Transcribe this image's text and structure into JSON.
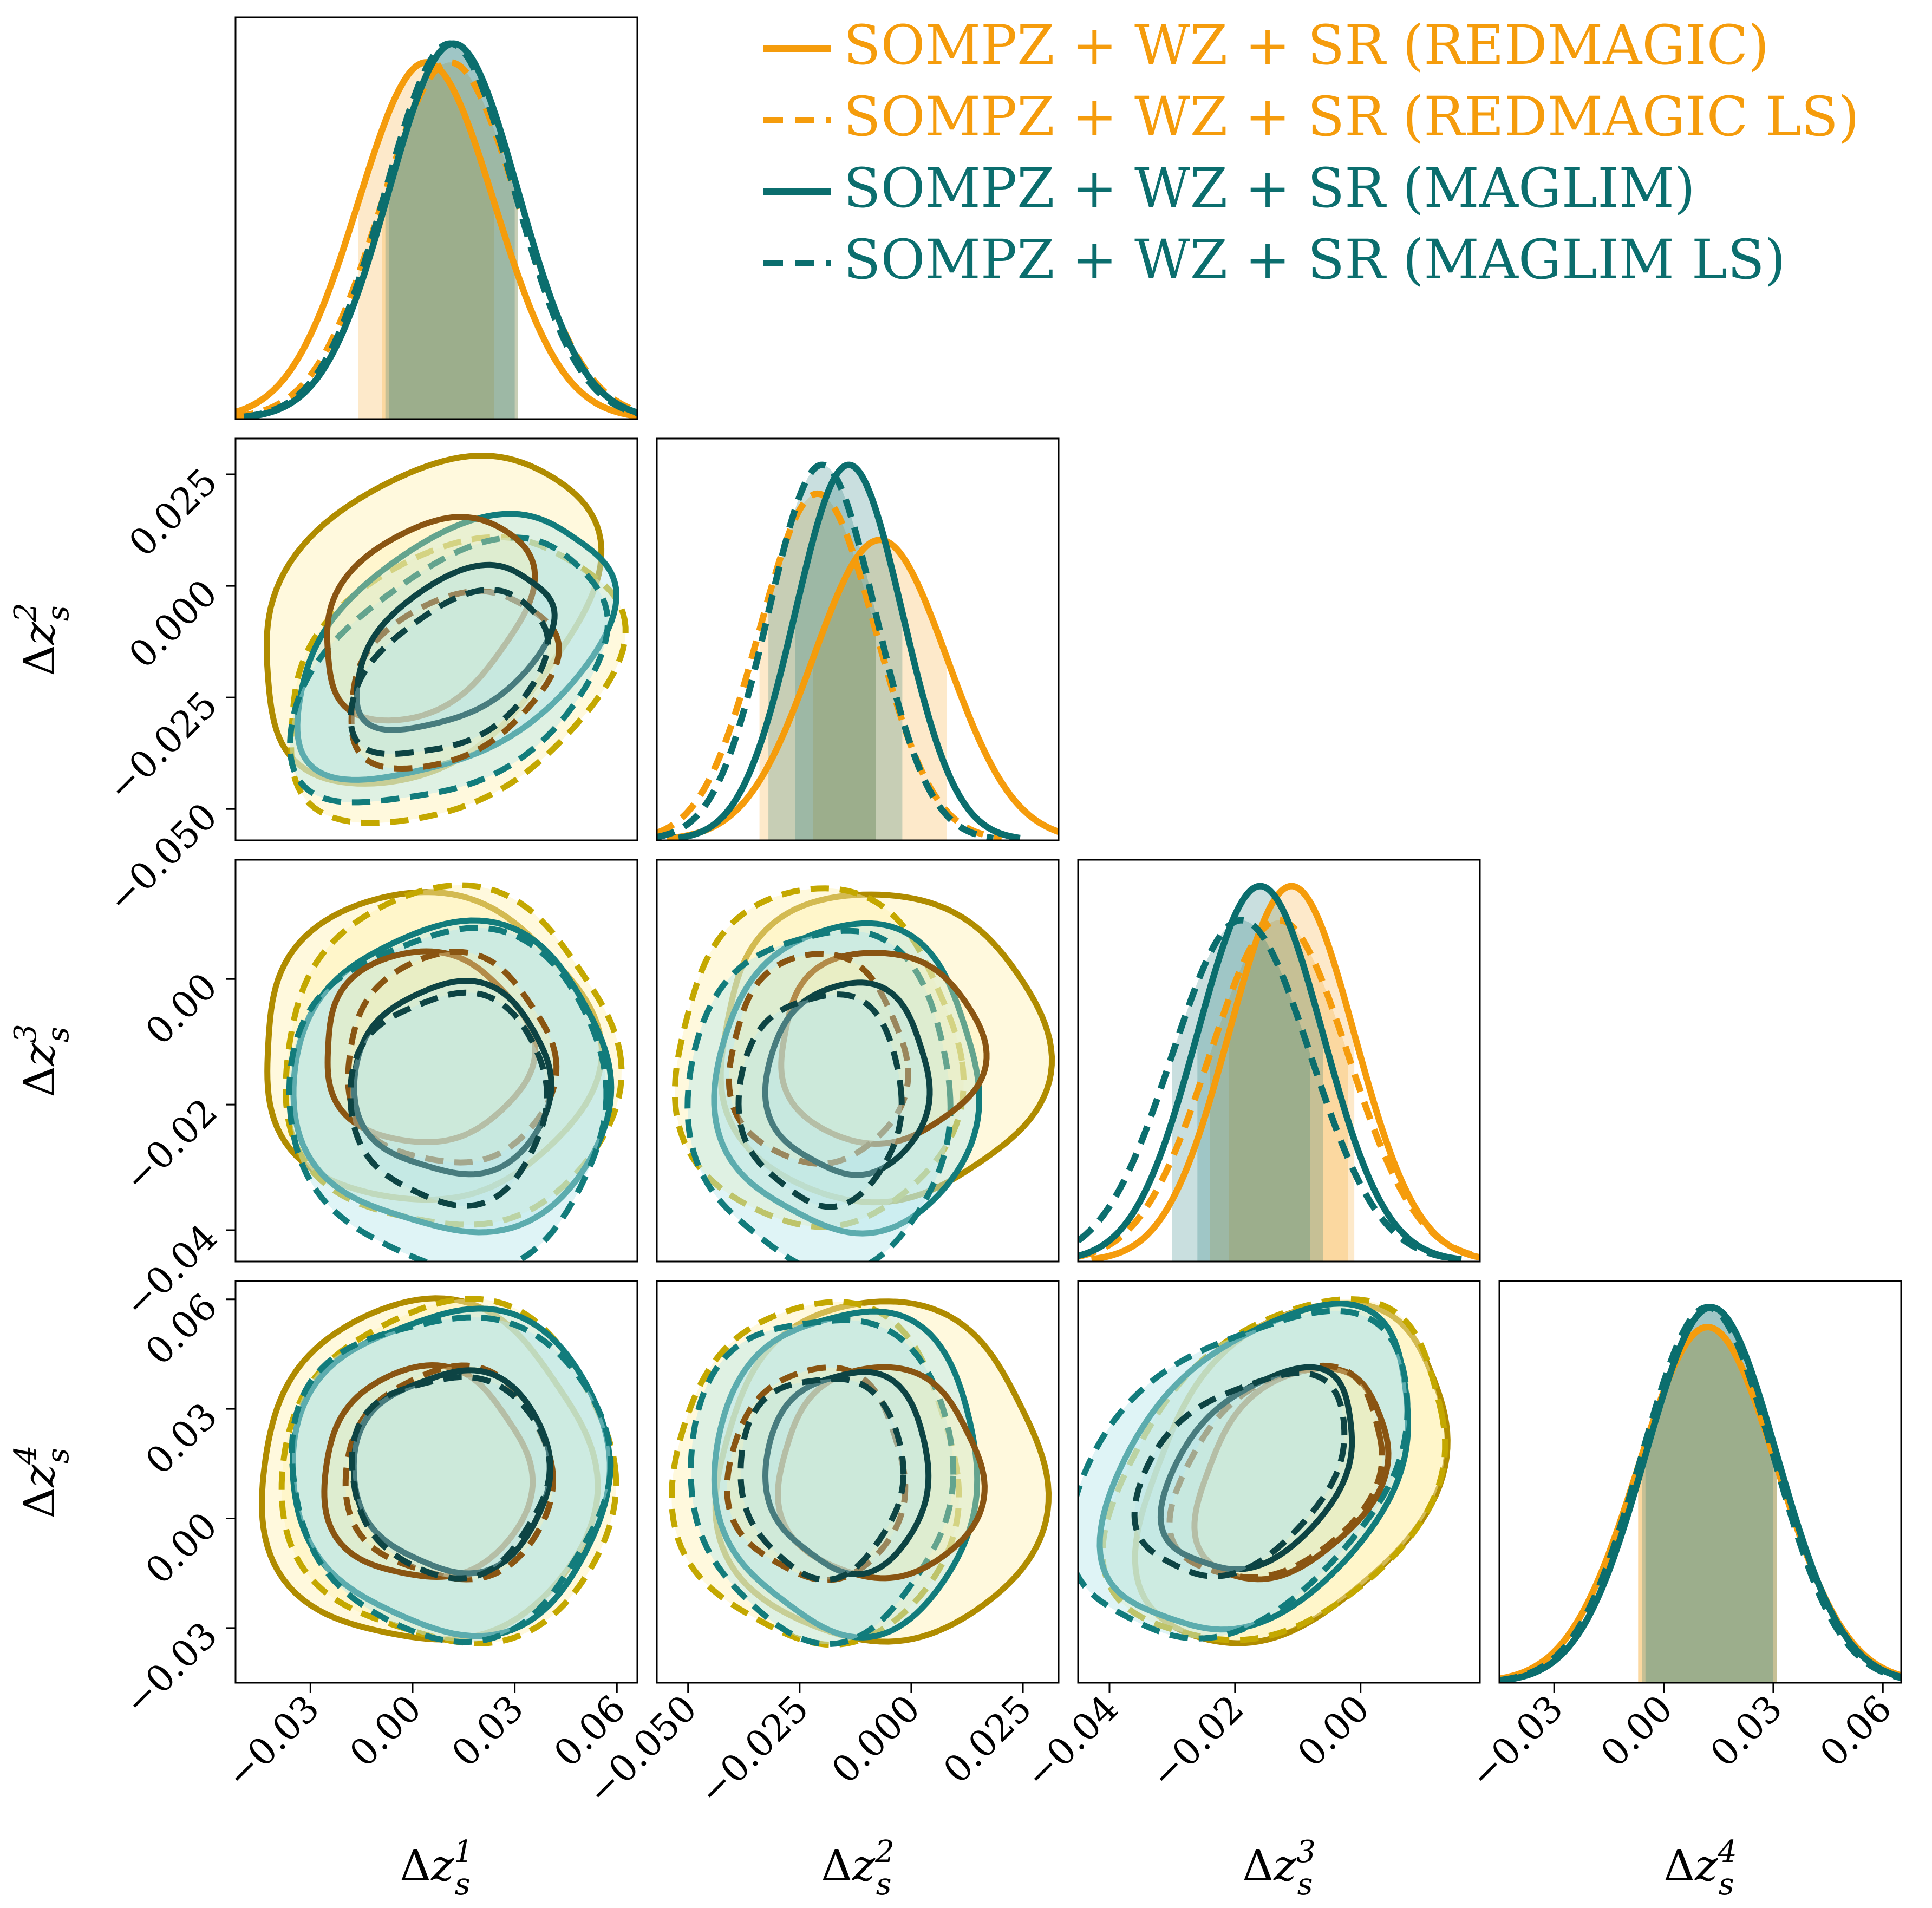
{
  "chart_data": {
    "type": "corner",
    "parameters": [
      {
        "symbol": "Δz",
        "var": "s",
        "index": "1",
        "range": [
          -0.052,
          0.066
        ],
        "ticks": [
          -0.03,
          0.0,
          0.03,
          0.06
        ],
        "tick_labels": [
          "−0.03",
          "0.00",
          "0.03",
          "0.06"
        ]
      },
      {
        "symbol": "Δz",
        "var": "s",
        "index": "2",
        "range": [
          -0.057,
          0.033
        ],
        "ticks": [
          -0.05,
          -0.025,
          0.0,
          0.025
        ],
        "tick_labels": [
          "−0.050",
          "−0.025",
          "0.000",
          "0.025"
        ]
      },
      {
        "symbol": "Δz",
        "var": "s",
        "index": "3",
        "range": [
          -0.045,
          0.019
        ],
        "ticks": [
          -0.04,
          -0.02,
          0.0
        ],
        "tick_labels": [
          "−0.04",
          "−0.02",
          "0.00"
        ]
      },
      {
        "symbol": "Δz",
        "var": "s",
        "index": "4",
        "range": [
          -0.045,
          0.065
        ],
        "ticks": [
          -0.03,
          0.0,
          0.03,
          0.06
        ],
        "tick_labels": [
          "−0.03",
          "0.00",
          "0.03",
          "0.06"
        ]
      }
    ],
    "series": [
      {
        "name": "SOMPZ + WZ + SR (redMaGiC)",
        "legend_text": "SOMPZ + WZ + SR (REDMAGIC)",
        "color": "#f59c0c",
        "contour_color": "#b08c00",
        "inner_color": "#8a5512",
        "fill": "#fff2b3",
        "linestyle": "solid",
        "mean": [
          0.004,
          -0.007,
          -0.011,
          0.012
        ],
        "sigma": [
          0.02,
          0.015,
          0.01,
          0.019
        ],
        "corr": [
          [
            1,
            0.35,
            0.0,
            0.0
          ],
          [
            0.35,
            1,
            0.0,
            0.0
          ],
          [
            0.0,
            0.0,
            1,
            0.35
          ],
          [
            0.0,
            0.0,
            0.35,
            1
          ]
        ]
      },
      {
        "name": "SOMPZ + WZ + SR (redMaGiC LS)",
        "legend_text": "SOMPZ + WZ + SR (REDMAGIC LS)",
        "color": "#f59c0c",
        "contour_color": "#c4a800",
        "inner_color": "#8a5512",
        "fill": "#fff2b3",
        "linestyle": "dashed",
        "mean": [
          0.011,
          -0.021,
          -0.013,
          0.012
        ],
        "sigma": [
          0.02,
          0.013,
          0.011,
          0.019
        ],
        "corr": [
          [
            1,
            0.35,
            0.0,
            0.0
          ],
          [
            0.35,
            1,
            0.0,
            0.0
          ],
          [
            0.0,
            0.0,
            1,
            0.35
          ],
          [
            0.0,
            0.0,
            0.35,
            1
          ]
        ]
      },
      {
        "name": "SOMPZ + WZ + SR (MagLim)",
        "legend_text": "SOMPZ + WZ + SR (MAGLIM)",
        "color": "#0b6e6e",
        "contour_color": "#127c7c",
        "inner_color": "#0d4444",
        "fill": "#b8e6ea",
        "linestyle": "solid",
        "mean": [
          0.012,
          -0.014,
          -0.016,
          0.013
        ],
        "sigma": [
          0.019,
          0.012,
          0.01,
          0.018
        ],
        "corr": [
          [
            1,
            0.45,
            0.0,
            0.0
          ],
          [
            0.45,
            1,
            0.0,
            0.0
          ],
          [
            0.0,
            0.0,
            1,
            0.4
          ],
          [
            0.0,
            0.0,
            0.4,
            1
          ]
        ]
      },
      {
        "name": "SOMPZ + WZ + SR (MagLim LS)",
        "legend_text": "SOMPZ + WZ + SR (MAGLIM LS)",
        "color": "#0b6e6e",
        "contour_color": "#127c7c",
        "inner_color": "#0d4444",
        "fill": "#b8e6ea",
        "linestyle": "dashed",
        "mean": [
          0.011,
          -0.02,
          -0.019,
          0.012
        ],
        "sigma": [
          0.019,
          0.012,
          0.011,
          0.018
        ],
        "corr": [
          [
            1,
            0.45,
            0.0,
            0.0
          ],
          [
            0.45,
            1,
            0.0,
            0.0
          ],
          [
            0.0,
            0.0,
            1,
            0.4
          ],
          [
            0.0,
            0.0,
            0.4,
            1
          ]
        ]
      }
    ],
    "contour_levels": [
      "68%",
      "95%"
    ],
    "legend_location": "top-right"
  }
}
